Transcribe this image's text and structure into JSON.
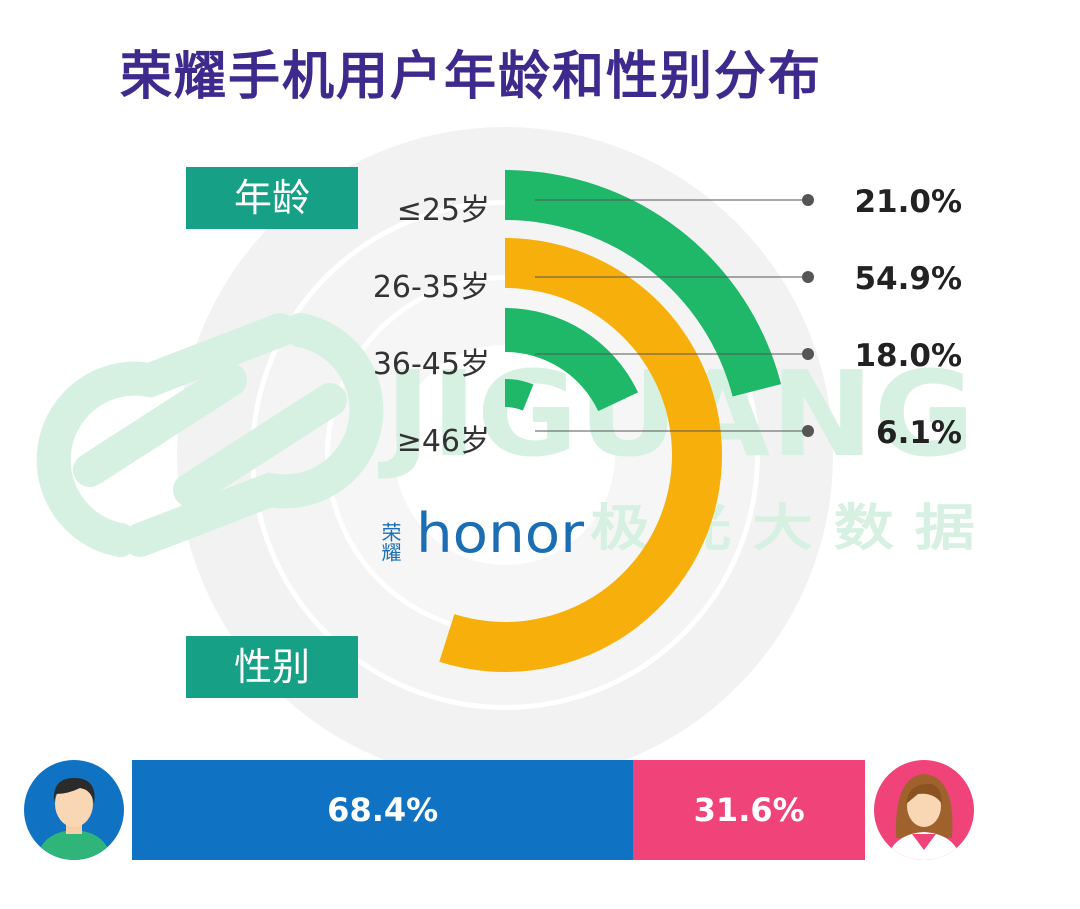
{
  "title": "荣耀手机用户年龄和性别分布",
  "sections": {
    "age": "年龄",
    "gender": "性别"
  },
  "watermark": {
    "latin": "JIGUANG",
    "cn": "极 光 大 数 据"
  },
  "brand": {
    "cn": "荣耀",
    "latin": "honor"
  },
  "colors": {
    "teal": "#16a085",
    "green": "#1fb768",
    "orange": "#f7b00b",
    "blue": "#0f72c2",
    "pink": "#f0437a",
    "title": "#3d2a8c",
    "ring_bg": "#f0f0f0",
    "watermark": "#d6f1e2",
    "brand": "#1c6eb4"
  },
  "chart_data": [
    {
      "type": "pie",
      "categories": [
        "≤25岁",
        "26-35岁",
        "36-45岁",
        "≥46岁"
      ],
      "values": [
        21.0,
        54.9,
        18.0,
        6.1
      ],
      "labels": [
        "21.0%",
        "54.9%",
        "18.0%",
        "6.1%"
      ],
      "series_colors": [
        "green",
        "orange",
        "green",
        "green"
      ]
    },
    {
      "type": "bar",
      "categories": [
        "male",
        "female"
      ],
      "values": [
        68.4,
        31.6
      ],
      "labels": [
        "68.4%",
        "31.6%"
      ],
      "series_colors": [
        "blue",
        "pink"
      ]
    }
  ]
}
